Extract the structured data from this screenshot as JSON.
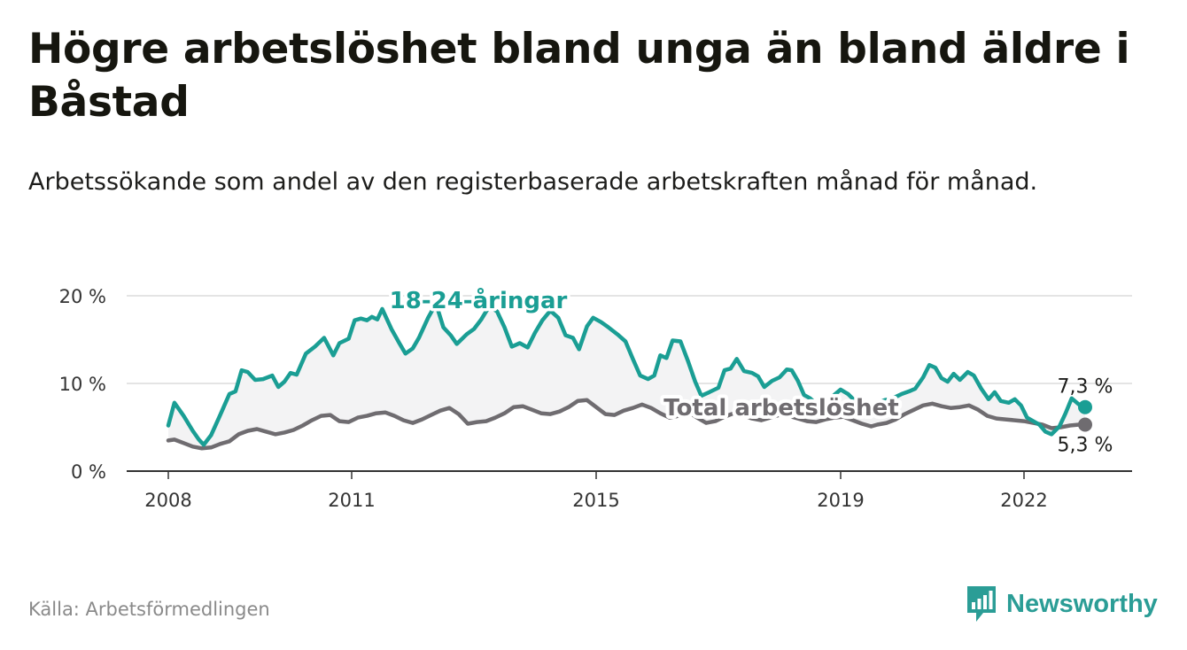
{
  "title": "Högre arbetslöshet bland unga än bland äldre i Båstad",
  "subtitle": "Arbetssökande som andel av den registerbaserade arbetskraften månad för månad.",
  "source": "Källa: Arbetsförmedlingen",
  "brand": {
    "name": "Newsworthy",
    "icon": "newsworthy-bar-chart-icon",
    "color": "#2b9d96"
  },
  "colors": {
    "youth": "#1a9e94",
    "total": "#6f6c70",
    "band": "#f3f3f4",
    "grid": "#dcdcdc",
    "axis": "#333333"
  },
  "chart_data": {
    "type": "line",
    "x_unit": "year",
    "ylim": [
      0,
      20
    ],
    "yticks": [
      {
        "v": 0,
        "label": "0 %"
      },
      {
        "v": 10,
        "label": "10 %"
      },
      {
        "v": 20,
        "label": "20 %"
      }
    ],
    "xticks": [
      {
        "v": 2008,
        "label": "2008"
      },
      {
        "v": 2011,
        "label": "2011"
      },
      {
        "v": 2015,
        "label": "2015"
      },
      {
        "v": 2019,
        "label": "2019"
      },
      {
        "v": 2022,
        "label": "2022"
      }
    ],
    "xlim": [
      2007.7,
      2023.5
    ],
    "series": [
      {
        "name": "18-24-åringar",
        "label": "18-24-åringar",
        "end_label": "7,3 %",
        "points": [
          [
            2008.0,
            5.2
          ],
          [
            2008.1,
            7.8
          ],
          [
            2008.25,
            6.3
          ],
          [
            2008.4,
            4.6
          ],
          [
            2008.5,
            3.6
          ],
          [
            2008.58,
            3.0
          ],
          [
            2008.7,
            4.1
          ],
          [
            2008.85,
            6.4
          ],
          [
            2009.0,
            8.8
          ],
          [
            2009.1,
            9.1
          ],
          [
            2009.2,
            11.5
          ],
          [
            2009.3,
            11.3
          ],
          [
            2009.42,
            10.4
          ],
          [
            2009.55,
            10.5
          ],
          [
            2009.7,
            10.9
          ],
          [
            2009.8,
            9.6
          ],
          [
            2009.9,
            10.2
          ],
          [
            2010.0,
            11.2
          ],
          [
            2010.1,
            11.0
          ],
          [
            2010.25,
            13.4
          ],
          [
            2010.4,
            14.2
          ],
          [
            2010.55,
            15.2
          ],
          [
            2010.7,
            13.2
          ],
          [
            2010.8,
            14.6
          ],
          [
            2010.95,
            15.1
          ],
          [
            2011.05,
            17.2
          ],
          [
            2011.15,
            17.4
          ],
          [
            2011.25,
            17.2
          ],
          [
            2011.33,
            17.6
          ],
          [
            2011.42,
            17.3
          ],
          [
            2011.5,
            18.5
          ],
          [
            2011.65,
            16.2
          ],
          [
            2011.78,
            14.6
          ],
          [
            2011.88,
            13.4
          ],
          [
            2012.0,
            14.0
          ],
          [
            2012.1,
            15.2
          ],
          [
            2012.25,
            17.5
          ],
          [
            2012.38,
            19.1
          ],
          [
            2012.5,
            16.4
          ],
          [
            2012.62,
            15.5
          ],
          [
            2012.72,
            14.5
          ],
          [
            2012.88,
            15.6
          ],
          [
            2013.0,
            16.2
          ],
          [
            2013.12,
            17.3
          ],
          [
            2013.25,
            18.8
          ],
          [
            2013.38,
            18.2
          ],
          [
            2013.5,
            16.4
          ],
          [
            2013.62,
            14.2
          ],
          [
            2013.75,
            14.6
          ],
          [
            2013.88,
            14.1
          ],
          [
            2014.0,
            15.8
          ],
          [
            2014.12,
            17.2
          ],
          [
            2014.25,
            18.3
          ],
          [
            2014.38,
            17.5
          ],
          [
            2014.5,
            15.5
          ],
          [
            2014.62,
            15.2
          ],
          [
            2014.72,
            13.9
          ],
          [
            2014.85,
            16.5
          ],
          [
            2014.95,
            17.5
          ],
          [
            2015.08,
            17.0
          ],
          [
            2015.2,
            16.4
          ],
          [
            2015.35,
            15.6
          ],
          [
            2015.48,
            14.8
          ],
          [
            2015.6,
            12.8
          ],
          [
            2015.72,
            10.9
          ],
          [
            2015.85,
            10.5
          ],
          [
            2015.95,
            10.9
          ],
          [
            2016.05,
            13.2
          ],
          [
            2016.15,
            12.9
          ],
          [
            2016.25,
            14.9
          ],
          [
            2016.38,
            14.8
          ],
          [
            2016.5,
            12.6
          ],
          [
            2016.62,
            10.2
          ],
          [
            2016.72,
            8.6
          ],
          [
            2016.85,
            9.0
          ],
          [
            2017.0,
            9.5
          ],
          [
            2017.1,
            11.5
          ],
          [
            2017.2,
            11.7
          ],
          [
            2017.3,
            12.8
          ],
          [
            2017.42,
            11.4
          ],
          [
            2017.55,
            11.2
          ],
          [
            2017.65,
            10.8
          ],
          [
            2017.75,
            9.6
          ],
          [
            2017.88,
            10.3
          ],
          [
            2018.0,
            10.7
          ],
          [
            2018.12,
            11.6
          ],
          [
            2018.2,
            11.5
          ],
          [
            2018.3,
            10.3
          ],
          [
            2018.4,
            8.7
          ],
          [
            2018.5,
            8.3
          ],
          [
            2018.62,
            7.5
          ],
          [
            2018.75,
            8.0
          ],
          [
            2018.88,
            8.6
          ],
          [
            2019.0,
            9.3
          ],
          [
            2019.12,
            8.8
          ],
          [
            2019.25,
            7.9
          ],
          [
            2019.38,
            7.4
          ],
          [
            2019.5,
            6.9
          ],
          [
            2019.62,
            7.8
          ],
          [
            2019.72,
            8.1
          ],
          [
            2019.85,
            8.3
          ],
          [
            2020.0,
            8.8
          ],
          [
            2020.12,
            9.1
          ],
          [
            2020.22,
            9.4
          ],
          [
            2020.35,
            10.7
          ],
          [
            2020.45,
            12.1
          ],
          [
            2020.55,
            11.8
          ],
          [
            2020.65,
            10.6
          ],
          [
            2020.75,
            10.2
          ],
          [
            2020.85,
            11.1
          ],
          [
            2020.95,
            10.4
          ],
          [
            2021.08,
            11.3
          ],
          [
            2021.18,
            10.9
          ],
          [
            2021.3,
            9.4
          ],
          [
            2021.42,
            8.2
          ],
          [
            2021.52,
            9.0
          ],
          [
            2021.62,
            8.0
          ],
          [
            2021.75,
            7.8
          ],
          [
            2021.85,
            8.2
          ],
          [
            2021.95,
            7.5
          ],
          [
            2022.05,
            6.1
          ],
          [
            2022.15,
            5.7
          ],
          [
            2022.25,
            5.3
          ],
          [
            2022.35,
            4.5
          ],
          [
            2022.45,
            4.2
          ],
          [
            2022.58,
            5.1
          ],
          [
            2022.68,
            6.6
          ],
          [
            2022.78,
            8.3
          ],
          [
            2022.9,
            7.6
          ],
          [
            2023.0,
            7.3
          ]
        ]
      },
      {
        "name": "Total arbetslöshet",
        "label": "Total arbetslöshet",
        "end_label": "5,3 %",
        "points": [
          [
            2008.0,
            3.5
          ],
          [
            2008.1,
            3.6
          ],
          [
            2008.25,
            3.2
          ],
          [
            2008.4,
            2.8
          ],
          [
            2008.55,
            2.6
          ],
          [
            2008.7,
            2.7
          ],
          [
            2008.85,
            3.1
          ],
          [
            2009.0,
            3.4
          ],
          [
            2009.15,
            4.2
          ],
          [
            2009.3,
            4.6
          ],
          [
            2009.45,
            4.8
          ],
          [
            2009.6,
            4.5
          ],
          [
            2009.75,
            4.2
          ],
          [
            2009.9,
            4.4
          ],
          [
            2010.05,
            4.7
          ],
          [
            2010.2,
            5.2
          ],
          [
            2010.35,
            5.8
          ],
          [
            2010.5,
            6.3
          ],
          [
            2010.65,
            6.4
          ],
          [
            2010.8,
            5.7
          ],
          [
            2010.95,
            5.6
          ],
          [
            2011.1,
            6.1
          ],
          [
            2011.25,
            6.3
          ],
          [
            2011.4,
            6.6
          ],
          [
            2011.55,
            6.7
          ],
          [
            2011.7,
            6.3
          ],
          [
            2011.85,
            5.8
          ],
          [
            2012.0,
            5.5
          ],
          [
            2012.15,
            5.9
          ],
          [
            2012.3,
            6.4
          ],
          [
            2012.45,
            6.9
          ],
          [
            2012.6,
            7.2
          ],
          [
            2012.75,
            6.5
          ],
          [
            2012.9,
            5.4
          ],
          [
            2013.05,
            5.6
          ],
          [
            2013.2,
            5.7
          ],
          [
            2013.35,
            6.1
          ],
          [
            2013.5,
            6.6
          ],
          [
            2013.65,
            7.3
          ],
          [
            2013.8,
            7.4
          ],
          [
            2013.95,
            7.0
          ],
          [
            2014.1,
            6.6
          ],
          [
            2014.25,
            6.5
          ],
          [
            2014.4,
            6.8
          ],
          [
            2014.55,
            7.3
          ],
          [
            2014.7,
            8.0
          ],
          [
            2014.85,
            8.1
          ],
          [
            2015.0,
            7.3
          ],
          [
            2015.15,
            6.5
          ],
          [
            2015.3,
            6.4
          ],
          [
            2015.45,
            6.9
          ],
          [
            2015.6,
            7.2
          ],
          [
            2015.75,
            7.6
          ],
          [
            2015.9,
            7.2
          ],
          [
            2016.05,
            6.6
          ],
          [
            2016.2,
            6.1
          ],
          [
            2016.35,
            6.3
          ],
          [
            2016.5,
            6.8
          ],
          [
            2016.65,
            6.1
          ],
          [
            2016.8,
            5.5
          ],
          [
            2016.95,
            5.7
          ],
          [
            2017.1,
            6.2
          ],
          [
            2017.25,
            6.6
          ],
          [
            2017.4,
            6.4
          ],
          [
            2017.55,
            6.0
          ],
          [
            2017.7,
            5.8
          ],
          [
            2017.85,
            6.1
          ],
          [
            2018.0,
            6.4
          ],
          [
            2018.15,
            6.3
          ],
          [
            2018.3,
            6.0
          ],
          [
            2018.45,
            5.7
          ],
          [
            2018.6,
            5.6
          ],
          [
            2018.75,
            5.9
          ],
          [
            2018.9,
            6.1
          ],
          [
            2019.05,
            6.2
          ],
          [
            2019.2,
            5.8
          ],
          [
            2019.35,
            5.4
          ],
          [
            2019.5,
            5.1
          ],
          [
            2019.6,
            5.3
          ],
          [
            2019.75,
            5.5
          ],
          [
            2019.9,
            5.9
          ],
          [
            2020.05,
            6.5
          ],
          [
            2020.2,
            7.0
          ],
          [
            2020.35,
            7.5
          ],
          [
            2020.5,
            7.7
          ],
          [
            2020.65,
            7.4
          ],
          [
            2020.8,
            7.2
          ],
          [
            2020.95,
            7.3
          ],
          [
            2021.1,
            7.5
          ],
          [
            2021.25,
            7.0
          ],
          [
            2021.4,
            6.3
          ],
          [
            2021.55,
            6.0
          ],
          [
            2021.7,
            5.9
          ],
          [
            2021.85,
            5.8
          ],
          [
            2022.0,
            5.7
          ],
          [
            2022.15,
            5.5
          ],
          [
            2022.3,
            5.3
          ],
          [
            2022.45,
            4.9
          ],
          [
            2022.6,
            5.0
          ],
          [
            2022.75,
            5.2
          ],
          [
            2022.9,
            5.3
          ],
          [
            2023.0,
            5.3
          ]
        ]
      }
    ]
  }
}
